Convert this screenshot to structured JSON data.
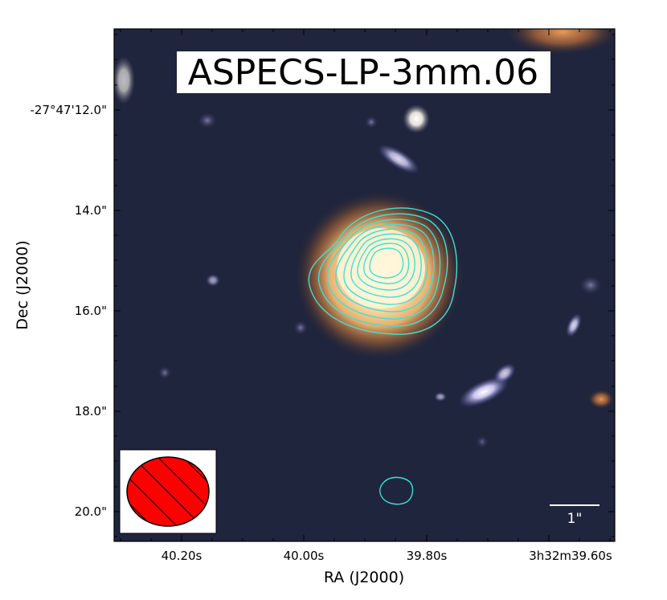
{
  "figure": {
    "title": "ASPECS-LP-3mm.06",
    "x_axis": {
      "label": "RA (J2000)",
      "ticks": [
        "40.20s",
        "40.00s",
        "39.80s",
        "3h32m39.60s"
      ]
    },
    "y_axis": {
      "label": "Dec (J2000)",
      "ticks": [
        "-27°47'12.0\"",
        "14.0\"",
        "16.0\"",
        "18.0\"",
        "20.0\""
      ]
    },
    "scale_bar": {
      "label": "1\""
    },
    "beam_marker": {
      "fill_color": "#ff0000",
      "hatch": "diagonal"
    },
    "contour_color": "#40e0d0"
  }
}
